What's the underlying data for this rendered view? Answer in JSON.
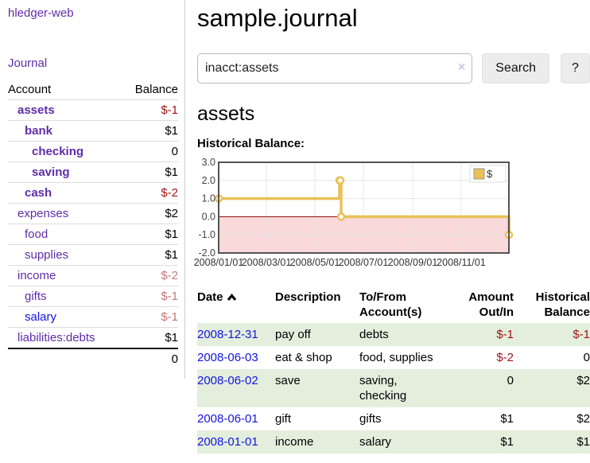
{
  "sidebar": {
    "brand": "hledger-web",
    "journal_link": "Journal",
    "accounts": {
      "header": {
        "account": "Account",
        "balance": "Balance"
      },
      "rows": [
        {
          "name": "assets",
          "balance": "$-1"
        },
        {
          "name": "bank",
          "balance": "$1"
        },
        {
          "name": "checking",
          "balance": "0"
        },
        {
          "name": "saving",
          "balance": "$1"
        },
        {
          "name": "cash",
          "balance": "$-2"
        },
        {
          "name": "expenses",
          "balance": "$2"
        },
        {
          "name": "food",
          "balance": "$1"
        },
        {
          "name": "supplies",
          "balance": "$1"
        },
        {
          "name": "income",
          "balance": "$-2"
        },
        {
          "name": "gifts",
          "balance": "$-1"
        },
        {
          "name": "salary",
          "balance": "$-1"
        },
        {
          "name": "liabilities:debts",
          "balance": "$1"
        }
      ],
      "total": "0"
    }
  },
  "main": {
    "title": "sample.journal",
    "search": {
      "value": "inacct:assets",
      "clear_icon": "×",
      "search_button": "Search",
      "help_button": "?"
    },
    "account_heading": "assets",
    "section_heading": "Historical Balance:",
    "register": {
      "headers": {
        "date": "Date",
        "description": "Description",
        "tofrom": "To/From Account(s)",
        "amount": "Amount Out/In",
        "balance": "Historical Balance"
      },
      "rows": [
        {
          "date": "2008-12-31",
          "description": "pay off",
          "accounts": "debts",
          "amount": "$-1",
          "balance": "$-1"
        },
        {
          "date": "2008-06-03",
          "description": "eat & shop",
          "accounts": "food, supplies",
          "amount": "$-2",
          "balance": "0"
        },
        {
          "date": "2008-06-02",
          "description": "save",
          "accounts": "saving, checking",
          "amount": "0",
          "balance": "$2"
        },
        {
          "date": "2008-06-01",
          "description": "gift",
          "accounts": "gifts",
          "amount": "$1",
          "balance": "$2"
        },
        {
          "date": "2008-01-01",
          "description": "income",
          "accounts": "salary",
          "amount": "$1",
          "balance": "$1"
        }
      ]
    }
  },
  "chart_data": {
    "type": "line",
    "title": "Historical Balance",
    "step": true,
    "series": [
      {
        "name": "$",
        "points": [
          {
            "date": "2008-01-01",
            "value": 1
          },
          {
            "date": "2008-06-01",
            "value": 2
          },
          {
            "date": "2008-06-02",
            "value": 2
          },
          {
            "date": "2008-06-03",
            "value": 0
          },
          {
            "date": "2008-12-31",
            "value": -1
          }
        ]
      }
    ],
    "x_range": [
      "2008-01-01",
      "2008-12-31"
    ],
    "ylim": [
      -2,
      3
    ],
    "y_ticks": [
      {
        "value": 3,
        "label": "3.0"
      },
      {
        "value": 2,
        "label": "2.0"
      },
      {
        "value": 1,
        "label": "1.0"
      },
      {
        "value": 0,
        "label": "0.0"
      },
      {
        "value": -1,
        "label": "-1.0"
      },
      {
        "value": -2,
        "label": "-2.0"
      }
    ],
    "x_ticks": [
      {
        "date": "2008-01-01",
        "label": "2008/01/01"
      },
      {
        "date": "2008-03-01",
        "label": "2008/03/01"
      },
      {
        "date": "2008-05-01",
        "label": "2008/05/01"
      },
      {
        "date": "2008-07-01",
        "label": "2008/07/01"
      },
      {
        "date": "2008-09-01",
        "label": "2008/09/01"
      },
      {
        "date": "2008-11-01",
        "label": "2008/11/01"
      }
    ],
    "legend": {
      "label": "$",
      "position": "top-right"
    },
    "grid": true,
    "colors": {
      "line": "#E9C158",
      "marker_fill": "#FFFFFF",
      "negative_fill": "#F9D9D9",
      "zero_line": "#8B0000",
      "grid": "#E8E8E8",
      "border": "#545454"
    }
  },
  "theme": {
    "link_purple": "#5F2DA8",
    "link_blue": "#1414E0",
    "negative_strong": "#9D1313",
    "negative_soft": "#C47979",
    "row_green": "#E3EEDD"
  }
}
